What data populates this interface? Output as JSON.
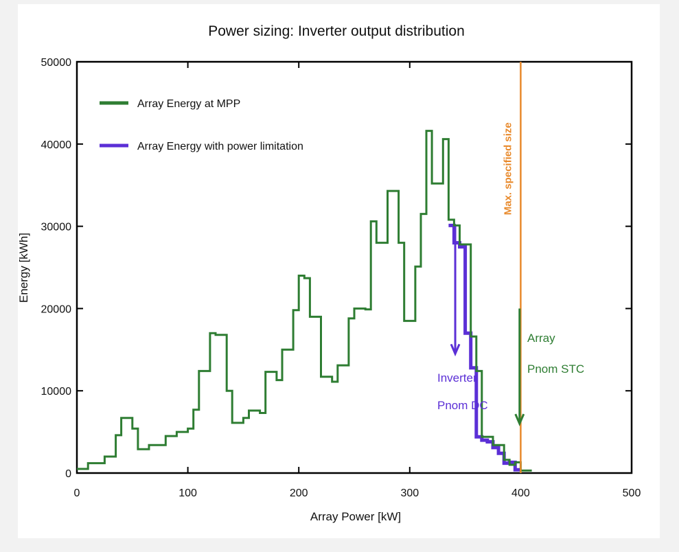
{
  "chart_data": {
    "type": "line",
    "title": "Power sizing: Inverter output distribution",
    "xlabel": "Array Power [kW]",
    "ylabel": "Energy [kWh]",
    "xlim": [
      0,
      500
    ],
    "ylim": [
      0,
      50000
    ],
    "x_ticks": [
      "0",
      "100",
      "200",
      "300",
      "400",
      "500"
    ],
    "y_ticks": [
      "0",
      "10000",
      "20000",
      "30000",
      "40000",
      "50000"
    ],
    "grid": false,
    "legend_position": "top-left",
    "bin_width_kw": 5,
    "series": [
      {
        "name": "Array Energy at MPP",
        "color": "#2e7d32",
        "bins": [
          0,
          5,
          10,
          15,
          20,
          25,
          30,
          35,
          40,
          45,
          50,
          55,
          60,
          65,
          70,
          75,
          80,
          85,
          90,
          95,
          100,
          105,
          110,
          115,
          120,
          125,
          130,
          135,
          140,
          145,
          150,
          155,
          160,
          165,
          170,
          175,
          180,
          185,
          190,
          195,
          200,
          205,
          210,
          215,
          220,
          225,
          230,
          235,
          240,
          245,
          250,
          255,
          260,
          265,
          270,
          275,
          280,
          285,
          290,
          295,
          300,
          305,
          310,
          315,
          320,
          325,
          330,
          335,
          340,
          345,
          350,
          355,
          360,
          365,
          370,
          375,
          380,
          385,
          390,
          395,
          400,
          405
        ],
        "values": [
          500,
          500,
          1200,
          1200,
          1200,
          2000,
          2000,
          4600,
          6700,
          6700,
          5400,
          2900,
          2900,
          3400,
          3400,
          3400,
          4500,
          4500,
          5000,
          5000,
          5400,
          7700,
          12400,
          12400,
          17000,
          16800,
          16800,
          10000,
          6100,
          6100,
          6700,
          7600,
          7600,
          7300,
          12300,
          12300,
          11300,
          15000,
          15000,
          19800,
          24000,
          23700,
          19000,
          19000,
          11700,
          11700,
          11100,
          13100,
          13100,
          18800,
          20000,
          20000,
          19900,
          30600,
          28000,
          28000,
          34300,
          34300,
          28000,
          18500,
          18500,
          25100,
          31500,
          41600,
          35200,
          35200,
          40600,
          30800,
          30100,
          27800,
          27800,
          16600,
          12400,
          4400,
          4400,
          3400,
          3400,
          1600,
          1000,
          1300,
          300,
          300
        ]
      },
      {
        "name": "Array Energy with power limitation",
        "color": "#5b2fd6",
        "bins": [
          335,
          340,
          345,
          350,
          355,
          360,
          365,
          370,
          375,
          380,
          385,
          390,
          395
        ],
        "values": [
          30100,
          28000,
          27500,
          17000,
          12800,
          4400,
          4000,
          3800,
          3100,
          2400,
          1200,
          1300,
          400
        ]
      }
    ],
    "annotations": {
      "inverter_label_line1": "Inverter",
      "inverter_label_line2": "Pnom DC",
      "inverter_pnom_kw": 341,
      "inverter_arrow_energy_range": [
        30000,
        14500
      ],
      "array_label_line1": "Array",
      "array_label_line2": "Pnom STC",
      "array_pnom_kw": 399,
      "array_arrow_energy_range": [
        20000,
        6000
      ],
      "max_line_label": "Max. specified size",
      "max_line_kw": 400,
      "max_line_color": "#e8892b"
    }
  }
}
